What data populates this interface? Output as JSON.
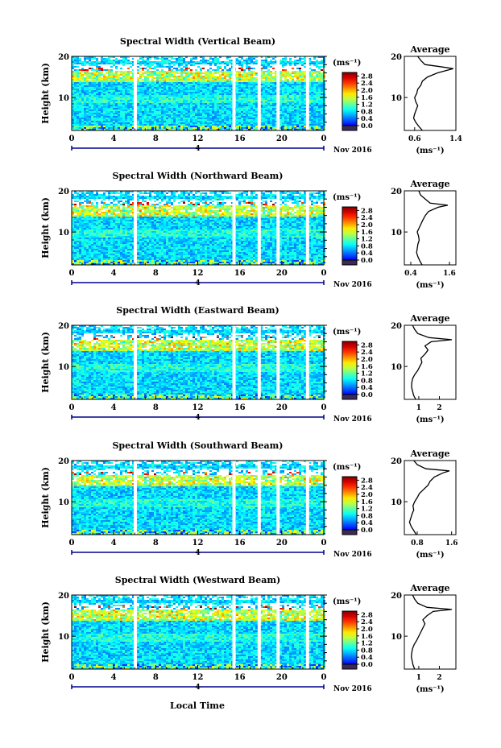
{
  "figure": {
    "date_label": "Nov 2016",
    "local_time_label": "Local Time",
    "bottom_marker_label": "4"
  },
  "chart_data": [
    {
      "type": "heatmap",
      "title": "Spectral Width (Vertical Beam)",
      "xlabel": "",
      "ylabel": "Height (km)",
      "x_ticks": [
        "0",
        "4",
        "8",
        "12",
        "16",
        "20",
        "0"
      ],
      "y_ticks": [
        "10",
        "20"
      ],
      "ylim": [
        2,
        20
      ],
      "xlim": [
        0,
        24
      ],
      "colorbar": {
        "unit": "(ms⁻¹)",
        "ticks": [
          "0.0",
          "0.4",
          "0.8",
          "1.2",
          "1.6",
          "2.0",
          "2.4",
          "2.8"
        ],
        "range": [
          0,
          3.0
        ]
      },
      "data_gaps_hours": [
        5.9,
        15.3,
        17.7,
        19.5,
        22.3
      ],
      "profile": {
        "title": "Average",
        "xlabel": "(ms⁻¹)",
        "x_ticks": [
          "0.6",
          "1.4"
        ],
        "xlim": [
          0.4,
          1.4
        ],
        "y_ticks": [
          "10",
          "20"
        ],
        "ylim": [
          2,
          20
        ],
        "heights": [
          2,
          3,
          4,
          5,
          6,
          7,
          8,
          9,
          10,
          11,
          12,
          13,
          14,
          15,
          16,
          17,
          17.5,
          18,
          19,
          20
        ],
        "values": [
          0.75,
          0.68,
          0.62,
          0.58,
          0.6,
          0.63,
          0.66,
          0.62,
          0.6,
          0.64,
          0.66,
          0.72,
          0.75,
          0.85,
          1.05,
          1.35,
          1.1,
          0.8,
          0.72,
          0.66
        ]
      }
    },
    {
      "type": "heatmap",
      "title": "Spectral Width (Northward Beam)",
      "xlabel": "",
      "ylabel": "Height (km)",
      "x_ticks": [
        "0",
        "4",
        "8",
        "12",
        "16",
        "20",
        "0"
      ],
      "y_ticks": [
        "10",
        "20"
      ],
      "ylim": [
        2,
        20
      ],
      "xlim": [
        0,
        24
      ],
      "colorbar": {
        "unit": "(ms⁻¹)",
        "ticks": [
          "0.0",
          "0.4",
          "0.8",
          "1.2",
          "1.6",
          "2.0",
          "2.4",
          "2.8"
        ],
        "range": [
          0,
          3.0
        ]
      },
      "data_gaps_hours": [
        5.9,
        15.3,
        17.7,
        19.5,
        22.3
      ],
      "profile": {
        "title": "Average",
        "xlabel": "(ms⁻¹)",
        "x_ticks": [
          "0.4",
          "1.6"
        ],
        "xlim": [
          0.2,
          1.8
        ],
        "y_ticks": [
          "10",
          "20"
        ],
        "ylim": [
          2,
          20
        ],
        "heights": [
          2,
          3,
          4,
          5,
          6,
          7,
          8,
          9,
          10,
          11,
          12,
          13,
          14,
          15,
          16,
          16.5,
          17,
          18,
          19,
          20
        ],
        "values": [
          0.75,
          0.68,
          0.62,
          0.58,
          0.6,
          0.62,
          0.66,
          0.64,
          0.6,
          0.66,
          0.72,
          0.78,
          0.85,
          0.95,
          1.25,
          1.55,
          1.0,
          0.85,
          0.7,
          0.65
        ]
      }
    },
    {
      "type": "heatmap",
      "title": "Spectral Width (Eastward Beam)",
      "xlabel": "",
      "ylabel": "Height (km)",
      "x_ticks": [
        "0",
        "4",
        "8",
        "12",
        "16",
        "20",
        "0"
      ],
      "y_ticks": [
        "10",
        "20"
      ],
      "ylim": [
        2,
        20
      ],
      "xlim": [
        0,
        24
      ],
      "colorbar": {
        "unit": "(ms⁻¹)",
        "ticks": [
          "0.0",
          "0.4",
          "0.8",
          "1.2",
          "1.6",
          "2.0",
          "2.4",
          "2.8"
        ],
        "range": [
          0,
          3.0
        ]
      },
      "data_gaps_hours": [
        5.9,
        15.3,
        17.7,
        19.5,
        22.3
      ],
      "profile": {
        "title": "Average",
        "xlabel": "(ms⁻¹)",
        "x_ticks": [
          "1",
          "2"
        ],
        "xlim": [
          0.3,
          2.8
        ],
        "y_ticks": [
          "10",
          "20"
        ],
        "ylim": [
          2,
          20
        ],
        "heights": [
          2,
          3,
          4,
          5,
          6,
          7,
          8,
          9,
          10,
          11,
          12,
          13,
          14,
          15,
          16,
          16.5,
          17,
          18,
          19,
          20
        ],
        "values": [
          0.85,
          0.75,
          0.7,
          0.65,
          0.66,
          0.7,
          0.8,
          0.95,
          1.05,
          1.15,
          1.1,
          1.3,
          1.45,
          1.3,
          1.6,
          2.6,
          1.5,
          0.95,
          0.8,
          0.7
        ]
      }
    },
    {
      "type": "heatmap",
      "title": "Spectral Width (Southward Beam)",
      "xlabel": "",
      "ylabel": "Height (km)",
      "x_ticks": [
        "0",
        "4",
        "8",
        "12",
        "16",
        "20",
        "0"
      ],
      "y_ticks": [
        "10",
        "20"
      ],
      "ylim": [
        2,
        20
      ],
      "xlim": [
        0,
        24
      ],
      "colorbar": {
        "unit": "(ms⁻¹)",
        "ticks": [
          "0.0",
          "0.4",
          "0.8",
          "1.2",
          "1.6",
          "2.0",
          "2.4",
          "2.8"
        ],
        "range": [
          0,
          3.0
        ]
      },
      "data_gaps_hours": [
        5.9,
        15.3,
        17.7,
        19.5,
        22.3
      ],
      "profile": {
        "title": "Average",
        "xlabel": "(ms⁻¹)",
        "x_ticks": [
          "0.8",
          "1.6"
        ],
        "xlim": [
          0.5,
          1.7
        ],
        "y_ticks": [
          "10",
          "20"
        ],
        "ylim": [
          2,
          20
        ],
        "heights": [
          2,
          3,
          4,
          5,
          6,
          7,
          8,
          9,
          10,
          11,
          12,
          13,
          14,
          15,
          16,
          17,
          17.5,
          18,
          19,
          20
        ],
        "values": [
          0.78,
          0.72,
          0.66,
          0.62,
          0.65,
          0.68,
          0.72,
          0.7,
          0.74,
          0.8,
          0.85,
          0.95,
          1.05,
          1.1,
          1.2,
          1.4,
          1.55,
          1.0,
          0.8,
          0.72
        ]
      }
    },
    {
      "type": "heatmap",
      "title": "Spectral Width (Westward Beam)",
      "xlabel": "Local Time",
      "ylabel": "Height (km)",
      "x_ticks": [
        "0",
        "4",
        "8",
        "12",
        "16",
        "20",
        "0"
      ],
      "y_ticks": [
        "10",
        "20"
      ],
      "ylim": [
        2,
        20
      ],
      "xlim": [
        0,
        24
      ],
      "colorbar": {
        "unit": "(ms⁻¹)",
        "ticks": [
          "0.0",
          "0.4",
          "0.8",
          "1.2",
          "1.6",
          "2.0",
          "2.4",
          "2.8"
        ],
        "range": [
          0,
          3.0
        ]
      },
      "data_gaps_hours": [
        5.9,
        15.3,
        17.7,
        19.5,
        22.3
      ],
      "profile": {
        "title": "Average",
        "xlabel": "(ms⁻¹)",
        "x_ticks": [
          "1",
          "2"
        ],
        "xlim": [
          0.3,
          2.8
        ],
        "y_ticks": [
          "10",
          "20"
        ],
        "ylim": [
          2,
          20
        ],
        "heights": [
          2,
          3,
          4,
          5,
          6,
          7,
          8,
          9,
          10,
          11,
          12,
          13,
          14,
          15,
          16,
          16.5,
          17,
          18,
          19,
          20
        ],
        "values": [
          0.8,
          0.72,
          0.68,
          0.64,
          0.66,
          0.7,
          0.78,
          0.9,
          1.0,
          1.1,
          1.2,
          1.3,
          1.2,
          1.4,
          1.7,
          2.6,
          1.4,
          0.95,
          0.8,
          0.7
        ]
      }
    }
  ]
}
